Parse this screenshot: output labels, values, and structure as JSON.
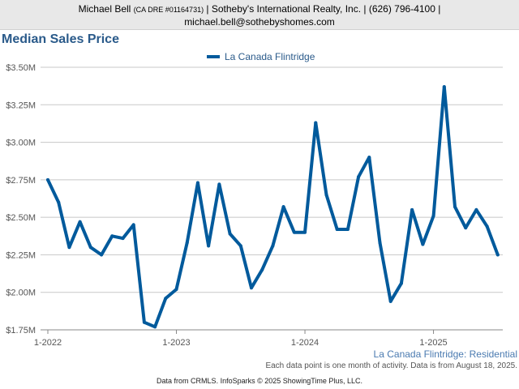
{
  "header": {
    "agent_name": "Michael Bell",
    "license": "(CA DRE #01164731)",
    "details": "| Sotheby's International Realty, Inc. | (626) 796-4100 |",
    "email": "michael.bell@sothebyshomes.com"
  },
  "chart_data": {
    "type": "line",
    "title": "Median Sales Price",
    "series": [
      {
        "name": "La Canada Flintridge",
        "color": "#005a9c",
        "values": [
          2.75,
          2.6,
          2.3,
          2.47,
          2.3,
          2.25,
          2.375,
          2.36,
          2.45,
          1.8,
          1.77,
          1.96,
          2.02,
          2.33,
          2.73,
          2.31,
          2.72,
          2.39,
          2.31,
          2.03,
          2.15,
          2.31,
          2.57,
          2.4,
          2.4,
          3.13,
          2.65,
          2.42,
          2.42,
          2.77,
          2.9,
          2.33,
          1.94,
          2.06,
          2.55,
          2.32,
          2.51,
          3.37,
          2.57,
          2.43,
          2.55,
          2.44,
          2.25
        ]
      }
    ],
    "x_start": "2022-01",
    "x_tick_labels": [
      "1-2022",
      "1-2023",
      "1-2024",
      "1-2025"
    ],
    "y_tick_labels": [
      "$1.75M",
      "$2.00M",
      "$2.25M",
      "$2.50M",
      "$2.75M",
      "$3.00M",
      "$3.25M",
      "$3.50M"
    ],
    "y_ticks": [
      1.75,
      2.0,
      2.25,
      2.5,
      2.75,
      3.0,
      3.25,
      3.5
    ],
    "ylim": [
      1.75,
      3.5
    ],
    "y_unit": "millions of dollars",
    "grid": true,
    "legend_position": "top-center"
  },
  "footer": {
    "region_label": "La Canada Flintridge: Residential",
    "note": "Each data point is one month of activity. Data is from August 18, 2025.",
    "source": "Data from CRMLS. InfoSparks © 2025 ShowingTime Plus, LLC."
  }
}
